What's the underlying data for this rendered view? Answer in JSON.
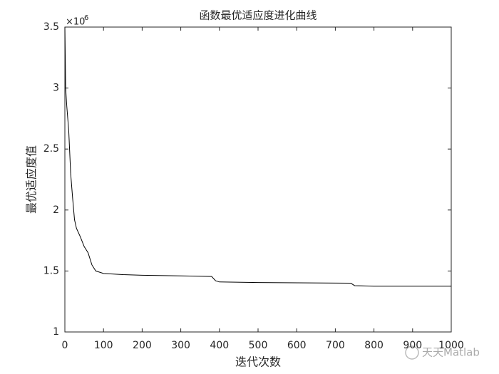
{
  "chart_data": {
    "type": "line",
    "title": "函数最优适应度进化曲线",
    "xlabel": "迭代次数",
    "ylabel": "最优适应度值",
    "y_multiplier": {
      "base": "×10",
      "power": "6"
    },
    "watermark": "天天Matlab",
    "color": "#000000",
    "x": [
      0,
      2,
      5,
      10,
      15,
      20,
      25,
      30,
      40,
      50,
      60,
      65,
      70,
      80,
      90,
      100,
      150,
      200,
      300,
      380,
      390,
      400,
      500,
      740,
      750,
      800,
      1000
    ],
    "values": [
      3.5,
      3.0,
      2.85,
      2.65,
      2.3,
      2.1,
      1.92,
      1.85,
      1.78,
      1.7,
      1.65,
      1.6,
      1.55,
      1.5,
      1.49,
      1.48,
      1.47,
      1.465,
      1.46,
      1.455,
      1.42,
      1.41,
      1.405,
      1.4,
      1.38,
      1.375,
      1.375
    ],
    "xlim": [
      0,
      1000
    ],
    "xticks": [
      0,
      100,
      200,
      300,
      400,
      500,
      600,
      700,
      800,
      900,
      1000
    ],
    "ylim": [
      1,
      3.5
    ],
    "yticks": [
      1,
      1.5,
      2,
      2.5,
      3,
      3.5
    ],
    "grid": false
  }
}
